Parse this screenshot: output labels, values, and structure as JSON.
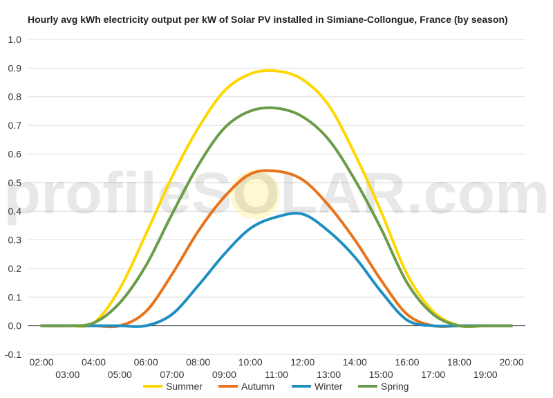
{
  "chart_data": {
    "type": "line",
    "title": "Hourly avg kWh electricity output per kW of Solar PV installed in Simiane-Collongue, France (by season)",
    "watermark": "profileSOLAR.com",
    "xlabel": "",
    "ylabel": "",
    "ylim": [
      -0.1,
      1.0
    ],
    "yticks": [
      "-0.1",
      "0.0",
      "0.1",
      "0.2",
      "0.3",
      "0.4",
      "0.5",
      "0.6",
      "0.7",
      "0.8",
      "0.9",
      "1.0"
    ],
    "x": [
      "02:00",
      "03:00",
      "04:00",
      "05:00",
      "06:00",
      "07:00",
      "08:00",
      "09:00",
      "10:00",
      "11:00",
      "12:00",
      "13:00",
      "14:00",
      "15:00",
      "16:00",
      "17:00",
      "18:00",
      "19:00",
      "20:00"
    ],
    "grid": true,
    "legend_position": "bottom",
    "series": [
      {
        "name": "Summer",
        "color": "#ffd700",
        "values": [
          0.0,
          0.0,
          0.01,
          0.13,
          0.32,
          0.52,
          0.69,
          0.82,
          0.88,
          0.89,
          0.86,
          0.77,
          0.6,
          0.4,
          0.18,
          0.05,
          0.0,
          0.0,
          0.0
        ]
      },
      {
        "name": "Autumn",
        "color": "#e8731a",
        "values": [
          0.0,
          0.0,
          0.0,
          0.0,
          0.05,
          0.18,
          0.33,
          0.45,
          0.53,
          0.54,
          0.51,
          0.42,
          0.3,
          0.16,
          0.04,
          0.0,
          0.0,
          0.0,
          0.0
        ]
      },
      {
        "name": "Winter",
        "color": "#1f8fc2",
        "values": [
          0.0,
          0.0,
          0.0,
          0.0,
          0.0,
          0.04,
          0.14,
          0.25,
          0.34,
          0.38,
          0.39,
          0.33,
          0.24,
          0.12,
          0.02,
          0.0,
          0.0,
          0.0,
          0.0
        ]
      },
      {
        "name": "Spring",
        "color": "#6b9c4a",
        "values": [
          0.0,
          0.0,
          0.01,
          0.08,
          0.21,
          0.39,
          0.56,
          0.69,
          0.75,
          0.76,
          0.73,
          0.65,
          0.51,
          0.34,
          0.15,
          0.04,
          0.0,
          0.0,
          0.0
        ]
      }
    ]
  }
}
